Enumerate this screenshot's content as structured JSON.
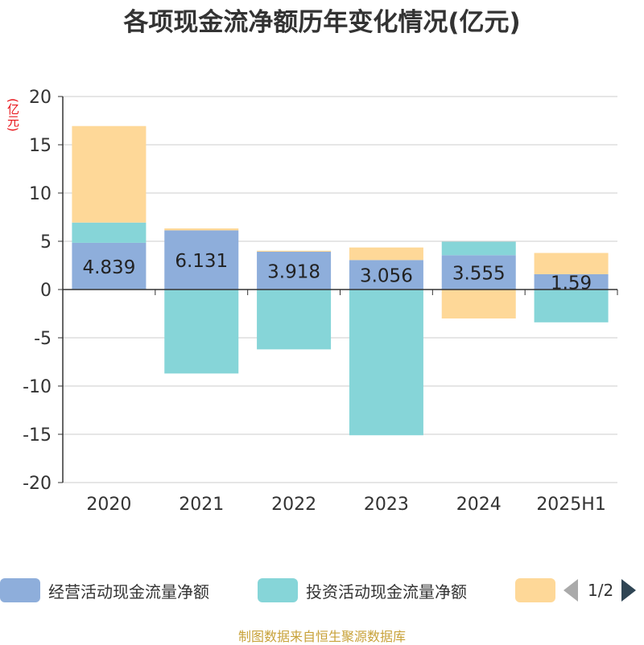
{
  "title": "各项现金流净额历年变化情况(亿元)",
  "unit_label": "(亿元)",
  "colors": {
    "operating": "#8eaedb",
    "investing": "#86d5d8",
    "financing": "#fed898",
    "grid": "#cccccc",
    "axis": "#333333",
    "title": "#333333",
    "unit": "#e8141a",
    "source": "#c8a23a"
  },
  "chart_data": {
    "type": "bar",
    "stacked": true,
    "categories": [
      "2020",
      "2021",
      "2022",
      "2023",
      "2024",
      "2025H1"
    ],
    "ylim": [
      -20,
      20
    ],
    "yticks": [
      20,
      15,
      10,
      5,
      0,
      -5,
      -10,
      -15,
      -20
    ],
    "grid": true,
    "legend_position": "bottom",
    "series": [
      {
        "name": "经营活动现金流量净额",
        "values": [
          4.839,
          6.131,
          3.918,
          3.056,
          3.555,
          1.59
        ],
        "labels": [
          "4.839",
          "6.131",
          "3.918",
          "3.056",
          "3.555",
          "1.59"
        ]
      },
      {
        "name": "投资活动现金流量净额",
        "values": [
          2.1,
          -8.7,
          -6.2,
          -15.1,
          1.4,
          -3.4
        ]
      },
      {
        "name": "",
        "values": [
          10.0,
          0.2,
          0.1,
          1.3,
          -3.0,
          2.2
        ]
      }
    ]
  },
  "legend": {
    "items": [
      {
        "label": "经营活动现金流量净额"
      },
      {
        "label": "投资活动现金流量净额"
      },
      {
        "label": ""
      }
    ],
    "page_text": "1/2"
  },
  "source_text": "制图数据来自恒生聚源数据库"
}
